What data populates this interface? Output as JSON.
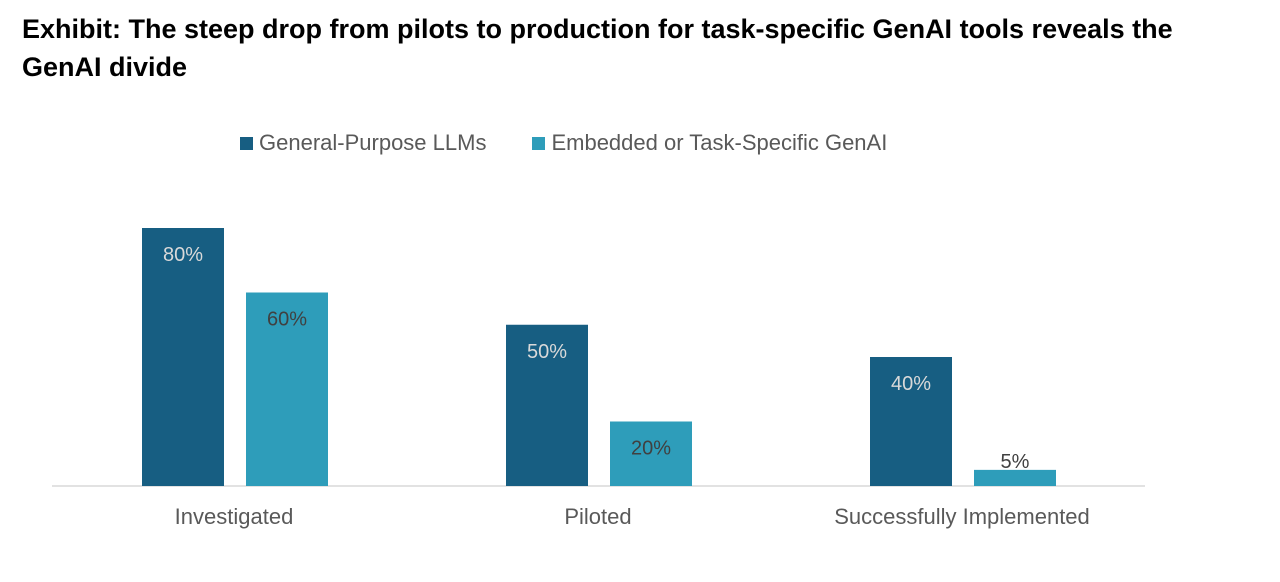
{
  "title": "Exhibit: The steep drop from pilots to production for task-specific GenAI tools reveals the GenAI divide",
  "chart_data": {
    "type": "bar",
    "title": "Exhibit: The steep drop from pilots to production for task-specific GenAI tools reveals the GenAI divide",
    "xlabel": "",
    "ylabel": "",
    "categories": [
      "Investigated",
      "Piloted",
      "Successfully Implemented"
    ],
    "series": [
      {
        "name": "General-Purpose LLMs",
        "color": "#175e82",
        "values": [
          80,
          50,
          40
        ],
        "labels": [
          "80%",
          "50%",
          "40%"
        ],
        "label_color": "#d9d9d9"
      },
      {
        "name": "Embedded or Task-Specific GenAI",
        "color": "#2e9dba",
        "values": [
          60,
          20,
          5
        ],
        "labels": [
          "60%",
          "20%",
          "5%"
        ],
        "label_color": "#404040"
      }
    ],
    "ylim": [
      0,
      80
    ],
    "grid": false,
    "legend": "top-center"
  }
}
